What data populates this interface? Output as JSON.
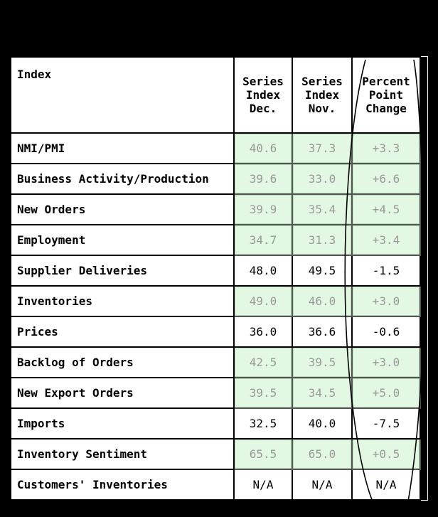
{
  "chart_data": {
    "type": "table",
    "columns": [
      {
        "key": "index",
        "label": [
          "Index"
        ]
      },
      {
        "key": "dec",
        "label": [
          "Series",
          "Index",
          "Dec."
        ]
      },
      {
        "key": "nov",
        "label": [
          "Series",
          "Index",
          "Nov."
        ]
      },
      {
        "key": "change",
        "label": [
          "Percent",
          "Point",
          "Change"
        ]
      }
    ],
    "rows": [
      {
        "index": "NMI/PMI",
        "dec": "40.6",
        "nov": "37.3",
        "change": "+3.3",
        "highlight": true
      },
      {
        "index": "Business Activity/Production",
        "dec": "39.6",
        "nov": "33.0",
        "change": "+6.6",
        "highlight": true
      },
      {
        "index": "New Orders",
        "dec": "39.9",
        "nov": "35.4",
        "change": "+4.5",
        "highlight": true
      },
      {
        "index": "Employment",
        "dec": "34.7",
        "nov": "31.3",
        "change": "+3.4",
        "highlight": true
      },
      {
        "index": "Supplier Deliveries",
        "dec": "48.0",
        "nov": "49.5",
        "change": "-1.5",
        "highlight": false
      },
      {
        "index": "Inventories",
        "dec": "49.0",
        "nov": "46.0",
        "change": "+3.0",
        "highlight": true
      },
      {
        "index": "Prices",
        "dec": "36.0",
        "nov": "36.6",
        "change": "-0.6",
        "highlight": false
      },
      {
        "index": "Backlog of Orders",
        "dec": "42.5",
        "nov": "39.5",
        "change": "+3.0",
        "highlight": true
      },
      {
        "index": "New Export Orders",
        "dec": "39.5",
        "nov": "34.5",
        "change": "+5.0",
        "highlight": true
      },
      {
        "index": "Imports",
        "dec": "32.5",
        "nov": "40.0",
        "change": "-7.5",
        "highlight": false
      },
      {
        "index": "Inventory Sentiment",
        "dec": "65.5",
        "nov": "65.0",
        "change": "+0.5",
        "highlight": true
      },
      {
        "index": "Customers' Inventories",
        "dec": "N/A",
        "nov": "N/A",
        "change": "N/A",
        "highlight": false
      }
    ],
    "colors": {
      "highlight_fill": "#e3f8e3",
      "highlight_text": "#999999",
      "text": "#000000",
      "background": "#000000"
    },
    "annotation": "hand-drawn-ellipse-around-percent-point-change-column"
  }
}
